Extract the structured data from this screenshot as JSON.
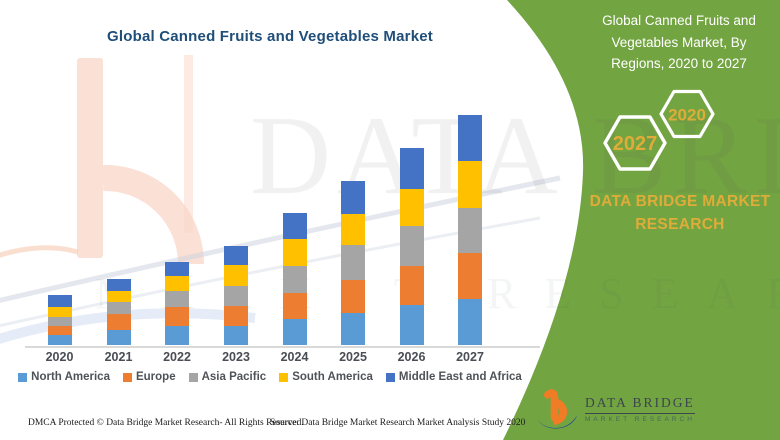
{
  "page": {
    "background": "#ffffff",
    "accent_green": "#73A442"
  },
  "chart": {
    "title": "Global Canned Fruits and Vegetables Market",
    "title_color": "#1F4E79",
    "axis_line_color": "#D9D9D9"
  },
  "chart_data": {
    "type": "bar",
    "stacked": true,
    "title": "Global Canned Fruits and Vegetables Market",
    "xlabel": "",
    "ylabel": "",
    "y_axis_visible": false,
    "gridlines": false,
    "legend_position": "bottom",
    "ylim": [
      0,
      245
    ],
    "categories": [
      "2020",
      "2021",
      "2022",
      "2023",
      "2024",
      "2025",
      "2026",
      "2027"
    ],
    "series": [
      {
        "name": "North America",
        "color": "#5B9BD5",
        "values": [
          10,
          15,
          19,
          19,
          26,
          32,
          40,
          46
        ]
      },
      {
        "name": "Europe",
        "color": "#ED7D31",
        "values": [
          9,
          16,
          19,
          20,
          26,
          33,
          39,
          46
        ]
      },
      {
        "name": "Asia Pacific",
        "color": "#A5A5A5",
        "values": [
          9,
          12,
          16,
          20,
          27,
          35,
          40,
          45
        ]
      },
      {
        "name": "South America",
        "color": "#FFC000",
        "values": [
          10,
          11,
          15,
          21,
          27,
          31,
          37,
          47
        ]
      },
      {
        "name": "Middle East and Africa",
        "color": "#4472C4",
        "values": [
          12,
          12,
          14,
          19,
          26,
          33,
          41,
          46
        ]
      }
    ]
  },
  "side_panel": {
    "heading": "Global Canned Fruits and Vegetables Market, By Regions, 2020 to 2027",
    "heading_color": "#ffffff",
    "background_color": "#73A442",
    "hexagons": [
      {
        "label": "2027"
      },
      {
        "label": "2020"
      }
    ],
    "hexagon_label_color": "#DFAC39",
    "brand": "DATA BRIDGE MARKET RESEARCH",
    "brand_color": "#DFAC39"
  },
  "logo": {
    "name": "DATA BRIDGE",
    "subtitle": "MARKET RESEARCH",
    "orange": "#F07C26",
    "blue": "#27508F"
  },
  "watermark": {
    "line1": "DATA BRIDGE",
    "line2": "MARKET RESEARCH"
  },
  "footer": {
    "dmca": "DMCA Protected © Data Bridge Market Research- All Rights Reserved.",
    "source": "Source: Data Bridge Market Research Market Analysis Study 2020"
  }
}
